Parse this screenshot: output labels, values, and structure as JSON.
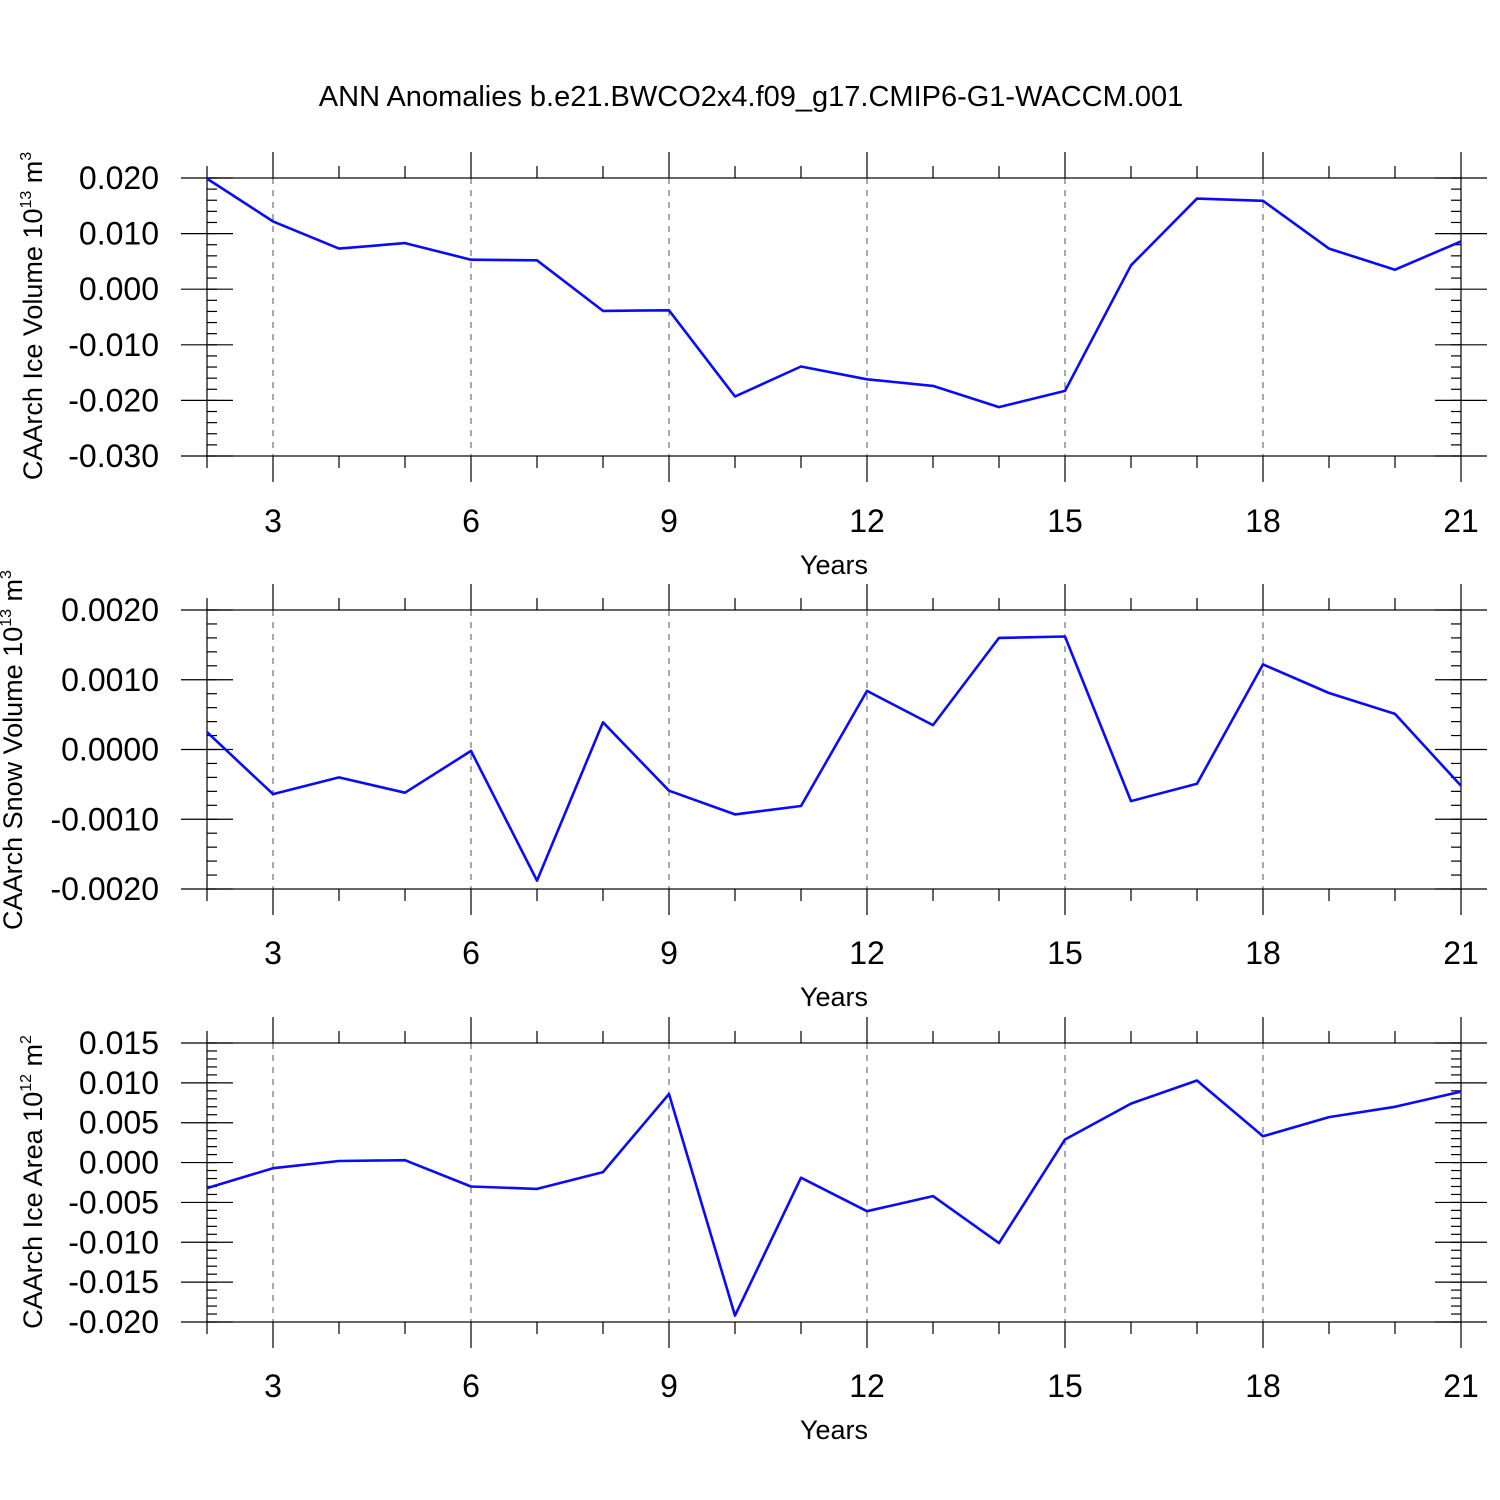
{
  "figure_title": "ANN Anomalies b.e21.BWCO2x4.f09_g17.CMIP6-G1-WACCM.001",
  "colors": {
    "series": "#0a0aff",
    "axes": "#000000",
    "grid": "#555555"
  },
  "chart_data": [
    {
      "type": "line",
      "ylabel": {
        "text": "CAArch Ice Volume 10",
        "sup": "13",
        "unit": "m",
        "unit_sup": "3"
      },
      "xlabel": "Years",
      "xlim": [
        2,
        21
      ],
      "ylim": [
        -0.03,
        0.02
      ],
      "yticks": [
        -0.03,
        -0.02,
        -0.01,
        0.0,
        0.01,
        0.02
      ],
      "ytick_labels": [
        "-0.030",
        "-0.020",
        "-0.010",
        "0.000",
        "0.010",
        "0.020"
      ],
      "yminor_step": 0.002,
      "xticks": [
        3,
        6,
        9,
        12,
        15,
        18,
        21
      ],
      "xtick_labels": [
        "3",
        "6",
        "9",
        "12",
        "15",
        "18",
        "21"
      ],
      "grid": "x-dashed",
      "x": [
        2,
        3,
        4,
        5,
        6,
        7,
        8,
        9,
        10,
        11,
        12,
        13,
        14,
        15,
        16,
        17,
        18,
        19,
        20,
        21
      ],
      "y": [
        0.0199,
        0.0122,
        0.0073,
        0.0083,
        0.0053,
        0.0052,
        -0.0039,
        -0.0038,
        -0.0193,
        -0.0139,
        -0.0162,
        -0.0174,
        -0.0212,
        -0.0183,
        0.0043,
        0.0163,
        0.0159,
        0.0073,
        0.0035,
        0.0086
      ]
    },
    {
      "type": "line",
      "ylabel": {
        "text": "CAArch Snow Volume 10",
        "sup": "13",
        "unit": "m",
        "unit_sup": "3"
      },
      "xlabel": "Years",
      "xlim": [
        2,
        21
      ],
      "ylim": [
        -0.002,
        0.002
      ],
      "yticks": [
        -0.002,
        -0.001,
        0.0,
        0.001,
        0.002
      ],
      "ytick_labels": [
        "-0.0020",
        "-0.0010",
        "0.0000",
        "0.0010",
        "0.0020"
      ],
      "yminor_step": 0.0002,
      "xticks": [
        3,
        6,
        9,
        12,
        15,
        18,
        21
      ],
      "xtick_labels": [
        "3",
        "6",
        "9",
        "12",
        "15",
        "18",
        "21"
      ],
      "grid": "x-dashed",
      "x": [
        2,
        3,
        4,
        5,
        6,
        7,
        8,
        9,
        10,
        11,
        12,
        13,
        14,
        15,
        16,
        17,
        18,
        19,
        20,
        21
      ],
      "y": [
        0.00025,
        -0.00064,
        -0.0004,
        -0.00062,
        -2e-05,
        -0.00188,
        0.00039,
        -0.00059,
        -0.00093,
        -0.00081,
        0.00084,
        0.00035,
        0.0016,
        0.00162,
        -0.00074,
        -0.00049,
        0.00122,
        0.00081,
        0.00051,
        -0.00052
      ]
    },
    {
      "type": "line",
      "ylabel": {
        "text": "CAArch Ice Area 10",
        "sup": "12",
        "unit": "m",
        "unit_sup": "2"
      },
      "xlabel": "Years",
      "xlim": [
        2,
        21
      ],
      "ylim": [
        -0.02,
        0.015
      ],
      "yticks": [
        -0.02,
        -0.015,
        -0.01,
        -0.005,
        0.0,
        0.005,
        0.01,
        0.015
      ],
      "ytick_labels": [
        "-0.020",
        "-0.015",
        "-0.010",
        "-0.005",
        "0.000",
        "0.005",
        "0.010",
        "0.015"
      ],
      "yminor_step": 0.001,
      "xticks": [
        3,
        6,
        9,
        12,
        15,
        18,
        21
      ],
      "xtick_labels": [
        "3",
        "6",
        "9",
        "12",
        "15",
        "18",
        "21"
      ],
      "grid": "x-dashed",
      "x": [
        2,
        3,
        4,
        5,
        6,
        7,
        8,
        9,
        10,
        11,
        12,
        13,
        14,
        15,
        16,
        17,
        18,
        19,
        20,
        21
      ],
      "y": [
        -0.0032,
        -0.0007,
        0.0002,
        0.0003,
        -0.003,
        -0.0033,
        -0.0012,
        0.0086,
        -0.0192,
        -0.0019,
        -0.0061,
        -0.0042,
        -0.0101,
        0.0029,
        0.0074,
        0.0103,
        0.0033,
        0.0057,
        0.007,
        0.0089
      ]
    }
  ]
}
